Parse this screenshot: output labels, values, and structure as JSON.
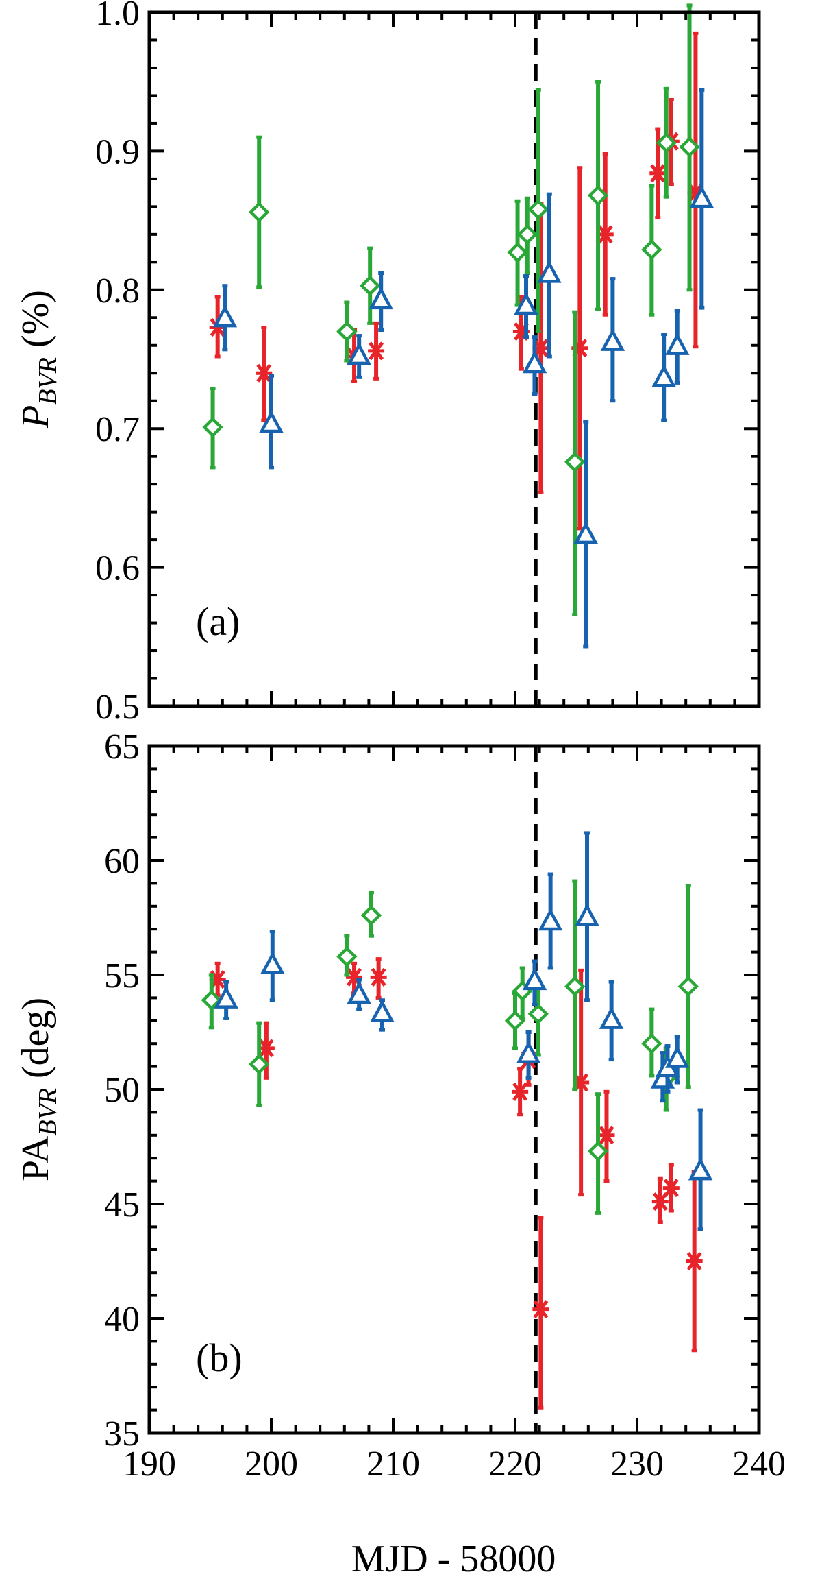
{
  "colors": {
    "B": "#e8242b",
    "V": "#2aa837",
    "R": "#1763b0",
    "axis": "#000000",
    "marker_line": "#000000"
  },
  "xlabel": "MJD - 58000",
  "chart_data": [
    {
      "type": "scatter",
      "panel_tag": "(a)",
      "ylabel_main": "P",
      "ylabel_sub": "BVR",
      "ylabel_unit": " (%)",
      "xlim": [
        190,
        240
      ],
      "ylim": [
        0.5,
        1.0
      ],
      "xticks": [
        "190",
        "200",
        "210",
        "220",
        "230",
        "240"
      ],
      "yticks": [
        "0.5",
        "0.6",
        "0.7",
        "0.8",
        "0.9",
        "1.0"
      ],
      "vline_x": 221.7,
      "series": [
        {
          "band": "B",
          "marker": "asterisk",
          "color": "#e8242b",
          "points": [
            [
              195.6,
              0.773,
              0.795,
              0.752
            ],
            [
              199.4,
              0.74,
              0.773,
              0.706
            ],
            [
              206.8,
              0.752,
              0.771,
              0.734
            ],
            [
              208.6,
              0.756,
              0.776,
              0.736
            ],
            [
              220.5,
              0.77,
              0.795,
              0.743
            ],
            [
              222.1,
              0.758,
              0.862,
              0.654
            ],
            [
              225.3,
              0.758,
              0.888,
              0.628
            ],
            [
              227.4,
              0.84,
              0.898,
              0.782
            ],
            [
              231.7,
              0.884,
              0.916,
              0.852
            ],
            [
              232.8,
              0.907,
              0.937,
              0.876
            ],
            [
              234.8,
              0.87,
              0.985,
              0.759
            ]
          ]
        },
        {
          "band": "V",
          "marker": "diamond",
          "color": "#2aa837",
          "points": [
            [
              195.2,
              0.701,
              0.729,
              0.672
            ],
            [
              199.0,
              0.856,
              0.91,
              0.802
            ],
            [
              206.2,
              0.77,
              0.791,
              0.749
            ],
            [
              208.1,
              0.803,
              0.83,
              0.776
            ],
            [
              220.2,
              0.827,
              0.864,
              0.789
            ],
            [
              221.0,
              0.84,
              0.866,
              0.812
            ],
            [
              221.9,
              0.858,
              0.944,
              0.77
            ],
            [
              224.9,
              0.676,
              0.784,
              0.566
            ],
            [
              226.8,
              0.868,
              0.95,
              0.786
            ],
            [
              231.2,
              0.829,
              0.875,
              0.782
            ],
            [
              232.4,
              0.906,
              0.945,
              0.867
            ],
            [
              234.3,
              0.903,
              1.005,
              0.8
            ]
          ]
        },
        {
          "band": "R",
          "marker": "triangle",
          "color": "#1763b0",
          "points": [
            [
              196.2,
              0.779,
              0.803,
              0.757
            ],
            [
              200.0,
              0.703,
              0.738,
              0.672
            ],
            [
              207.2,
              0.752,
              0.767,
              0.737
            ],
            [
              209.0,
              0.792,
              0.812,
              0.771
            ],
            [
              220.9,
              0.788,
              0.81,
              0.766
            ],
            [
              221.6,
              0.746,
              0.766,
              0.725
            ],
            [
              222.8,
              0.811,
              0.869,
              0.752
            ],
            [
              225.8,
              0.623,
              0.705,
              0.543
            ],
            [
              228.0,
              0.762,
              0.808,
              0.72
            ],
            [
              232.2,
              0.736,
              0.768,
              0.706
            ],
            [
              233.3,
              0.759,
              0.785,
              0.733
            ],
            [
              235.3,
              0.865,
              0.944,
              0.787
            ]
          ]
        }
      ]
    },
    {
      "type": "scatter",
      "panel_tag": "(b)",
      "ylabel_main": "PA",
      "ylabel_sub": "BVR",
      "ylabel_unit": " (deg)",
      "xlim": [
        190,
        240
      ],
      "ylim": [
        35,
        65
      ],
      "xticks": [
        "190",
        "200",
        "210",
        "220",
        "230",
        "240"
      ],
      "yticks": [
        "35",
        "40",
        "45",
        "50",
        "55",
        "60",
        "65"
      ],
      "vline_x": 221.7,
      "series": [
        {
          "band": "B",
          "marker": "asterisk",
          "color": "#e8242b",
          "points": [
            [
              195.6,
              54.8,
              55.5,
              54.1
            ],
            [
              199.6,
              51.8,
              52.9,
              50.5
            ],
            [
              206.8,
              54.9,
              55.5,
              54.2
            ],
            [
              208.8,
              54.9,
              55.7,
              54.0
            ],
            [
              220.4,
              49.9,
              50.9,
              48.9
            ],
            [
              221.1,
              51.3,
              52.5,
              50.2
            ],
            [
              222.1,
              40.4,
              44.4,
              36.1
            ],
            [
              225.4,
              50.3,
              55.2,
              45.4
            ],
            [
              227.5,
              48.0,
              49.9,
              46.0
            ],
            [
              231.9,
              45.1,
              46.1,
              44.2
            ],
            [
              232.8,
              45.7,
              46.7,
              44.7
            ],
            [
              234.7,
              42.5,
              46.4,
              38.6
            ]
          ]
        },
        {
          "band": "V",
          "marker": "diamond",
          "color": "#2aa837",
          "points": [
            [
              195.1,
              53.9,
              55.0,
              52.7
            ],
            [
              199.0,
              51.1,
              52.9,
              49.3
            ],
            [
              206.2,
              55.8,
              56.7,
              55.0
            ],
            [
              208.2,
              57.6,
              58.6,
              56.7
            ],
            [
              220.0,
              53.0,
              54.2,
              51.8
            ],
            [
              220.6,
              54.3,
              55.3,
              53.1
            ],
            [
              221.9,
              53.3,
              54.8,
              51.5
            ],
            [
              224.9,
              54.5,
              59.1,
              50.0
            ],
            [
              226.8,
              47.3,
              49.8,
              44.6
            ],
            [
              231.2,
              52.0,
              53.5,
              50.6
            ],
            [
              232.4,
              50.5,
              51.8,
              49.1
            ],
            [
              234.2,
              54.5,
              58.9,
              50.1
            ]
          ]
        },
        {
          "band": "R",
          "marker": "triangle",
          "color": "#1763b0",
          "points": [
            [
              196.3,
              53.9,
              54.7,
              53.1
            ],
            [
              200.1,
              55.4,
              56.9,
              53.9
            ],
            [
              207.2,
              54.1,
              54.8,
              53.5
            ],
            [
              209.1,
              53.3,
              53.9,
              52.6
            ],
            [
              221.1,
              51.5,
              52.5,
              50.5
            ],
            [
              221.6,
              54.7,
              55.6,
              53.7
            ],
            [
              222.9,
              57.3,
              59.4,
              55.3
            ],
            [
              225.9,
              57.5,
              61.2,
              53.9
            ],
            [
              227.9,
              53.0,
              54.7,
              51.3
            ],
            [
              232.1,
              50.4,
              51.6,
              49.5
            ],
            [
              232.5,
              50.9,
              51.9,
              49.9
            ],
            [
              233.3,
              51.3,
              52.3,
              50.3
            ],
            [
              235.2,
              46.4,
              49.1,
              43.9
            ]
          ]
        }
      ]
    }
  ]
}
